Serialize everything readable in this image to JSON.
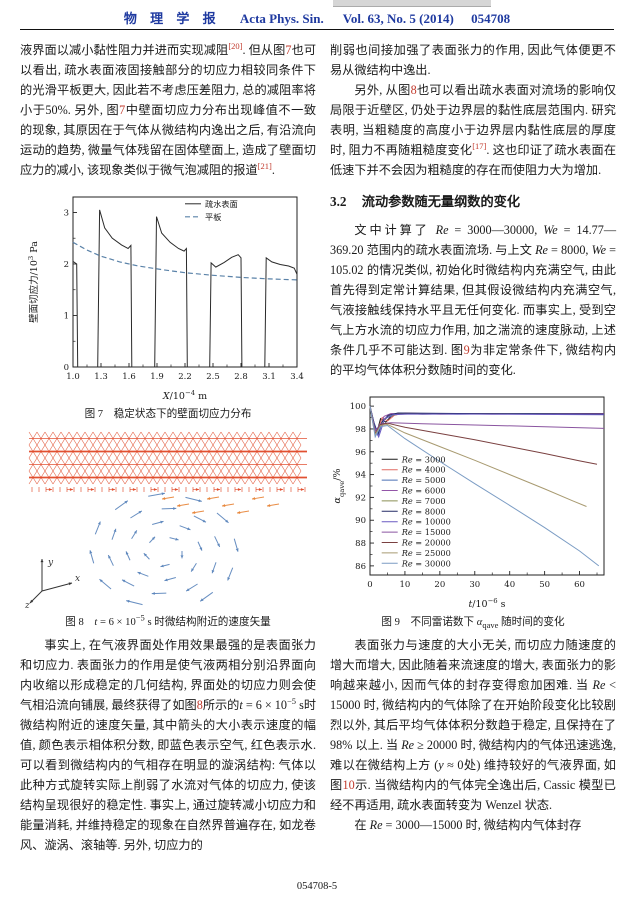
{
  "header": {
    "journal_cn": "物 理 学 报",
    "journal_en": "Acta Phys. Sin.",
    "volume": "Vol. 63, No. 5 (2014)",
    "article": "054708"
  },
  "footer": {
    "page_label": "054708-5"
  },
  "colors": {
    "header_blue": "#1f3aa0",
    "reference_red": "#c23b2e",
    "figure8_water_red": "#e04828",
    "figure8_gas_blue": "#5b85bc",
    "figure8_interface_orange": "#e8863a"
  },
  "left_column": {
    "p1": [
      {
        "t": "液界面以减小黏性阻力并进而实现减阻"
      },
      {
        "t": "[20]",
        "c": "ref"
      },
      {
        "t": ". 但从图"
      },
      {
        "t": "7",
        "c": "red"
      },
      {
        "t": "也可以看出, 疏水表面液固接触部分的切应力相较同条件下的光滑平板更大, 因此若不考虑压差阻力, 总的减阻率将小于50%. 另外, 图"
      },
      {
        "t": "7",
        "c": "red"
      },
      {
        "t": "中壁面切应力分布出现峰值不一致的现象, 其原因在于气体从微结构内逸出之后, 有沿流向运动的趋势, 微量气体残留在固体壁面上, 造成了壁面切应力的减小, 该现象类似于微气泡减阻的报道"
      },
      {
        "t": "[21]",
        "c": "ref"
      },
      {
        "t": "."
      }
    ],
    "fig7_caption": "图 7 稳定状态下的壁面切应力分布",
    "fig8_caption": [
      {
        "t": "图 8 "
      },
      {
        "t": "t",
        "c": "it"
      },
      {
        "t": " = 6 × 10"
      },
      {
        "t": "−5",
        "c": "sup"
      },
      {
        "t": " s 时微结构附近的速度矢量"
      }
    ],
    "p2": [
      {
        "t": "事实上, 在气液界面处作用效果最强的是表面张力和切应力. 表面张力的作用是使气液两相分别沿界面向内收缩以形成稳定的几何结构, 界面处的切应力则会使气相沿流向铺展, 最终获得了如图"
      },
      {
        "t": "8",
        "c": "red"
      },
      {
        "t": "所示的"
      },
      {
        "t": "t",
        "c": "it"
      },
      {
        "t": " = 6 × 10"
      },
      {
        "t": "−5",
        "c": "sup"
      },
      {
        "t": " s时微结构附近的速度矢量, 其中箭头的大小表示速度的幅值, 颜色表示相体积分数, 即蓝色表示空气, 红色表示水. 可以看到微结构内的气相存在明显的漩涡结构: 气体以此种方式旋转实际上削弱了水流对气体的切应力, 使该结构呈现很好的稳定性. 事实上, 通过旋转减小切应力和能量消耗, 并维持稳定的现象在自然界普遍存在, 如龙卷风、漩涡、滚轴等. 另外, 切应力的"
      }
    ]
  },
  "right_column": {
    "p3": [
      {
        "t": "削弱也间接加强了表面张力的作用, 因此气体便更不易从微结构中逸出."
      }
    ],
    "p4": [
      {
        "t": "另外, 从图"
      },
      {
        "t": "8",
        "c": "red"
      },
      {
        "t": "也可以看出疏水表面对流场的影响仅局限于近壁区, 仍处于边界层的黏性底层范围内. 研究表明, 当粗糙度的高度小于边界层内黏性底层的厚度时, 阻力不再随粗糙度变化"
      },
      {
        "t": "[17]",
        "c": "ref"
      },
      {
        "t": ". 这也印证了疏水表面在低速下并不会因为粗糙度的存在而使阻力大为增加."
      }
    ],
    "section": {
      "number": "3.2",
      "title": "流动参数随无量纲数的变化"
    },
    "p5": [
      {
        "t": "文中计算了 "
      },
      {
        "t": "Re",
        "c": "it"
      },
      {
        "t": " = 3000—30000, "
      },
      {
        "t": "We",
        "c": "it"
      },
      {
        "t": " = 14.77—369.20 范围内的疏水表面流场. 与上文 "
      },
      {
        "t": "Re",
        "c": "it"
      },
      {
        "t": " = 8000, "
      },
      {
        "t": "We",
        "c": "it"
      },
      {
        "t": " = 105.02 的情况类似, 初始化时微结构内充满空气, 由此首先得到定常计算结果, 但其假设微结构内充满空气, 气液接触线保持水平且无任何变化. 而事实上, 受到空气上方水流的切应力作用, 加之湍流的速度脉动, 上述条件几乎不可能达到. 图"
      },
      {
        "t": "9",
        "c": "red"
      },
      {
        "t": "为非定常条件下, 微结构内的平均气体体积分数随时间的变化."
      }
    ],
    "fig9_caption": [
      {
        "t": "图 9 不同雷诺数下 "
      },
      {
        "t": "α",
        "c": "it"
      },
      {
        "t": "qave",
        "c": "sub"
      },
      {
        "t": " 随时间的变化"
      }
    ],
    "p6": [
      {
        "t": "表面张力与速度的大小无关, 而切应力随速度的增大而增大, 因此随着来流速度的增大, 表面张力的影响越来越小, 因而气体的封存变得愈加困难. 当 "
      },
      {
        "t": "Re",
        "c": "it"
      },
      {
        "t": " < 15000 时, 微结构内的气体除了在开始阶段变化比较剧烈以外, 其后平均气体体积分数趋于稳定, 且保持在了98% 以上. 当 "
      },
      {
        "t": "Re",
        "c": "it"
      },
      {
        "t": " ≥ 20000 时, 微结构内的气体迅速逃逸, 难以在微结构上方 ("
      },
      {
        "t": "y",
        "c": "it"
      },
      {
        "t": " ≈ 0处) 维持较好的气液界面, 如图"
      },
      {
        "t": "10",
        "c": "red"
      },
      {
        "t": "示. 当微结构内的气体完全逸出后, Cassic 模型已经不再适用, 疏水表面转变为 Wenzel 状态."
      }
    ],
    "p7": [
      {
        "t": "在 "
      },
      {
        "t": "Re",
        "c": "it"
      },
      {
        "t": " = 3000—15000 时, 微结构内气体封存"
      }
    ]
  },
  "figure8": {
    "type": "vector-field",
    "water_color": "#e04828",
    "gas_color": "#5b85bc",
    "interface_color": "#e8863a",
    "axis_labels": {
      "x": "x",
      "y": "y",
      "z": "z"
    }
  },
  "chart_data": [
    {
      "type": "line",
      "title": "稳定状态下的壁面切应力分布",
      "xlabel": "X/10⁻⁴ m",
      "ylabel": "壁面切应力/10³ Pa",
      "xlabel_runs": [
        {
          "t": "X",
          "c": "it"
        },
        {
          "t": "/10"
        },
        {
          "t": "−4",
          "c": "sup"
        },
        {
          "t": " m"
        }
      ],
      "ylabel_runs": [
        {
          "t": "壁面切应力/10"
        },
        {
          "t": "3",
          "c": "sup"
        },
        {
          "t": " Pa"
        }
      ],
      "xlim": [
        1.0,
        3.4
      ],
      "ylim": [
        0,
        3.3
      ],
      "xticks": [
        1.0,
        1.3,
        1.6,
        1.9,
        2.2,
        2.5,
        2.8,
        3.1,
        3.4
      ],
      "xtick_labels": [
        "1.0",
        "1.3",
        "1.6",
        "1.9",
        "2.2",
        "2.5",
        "2.8",
        "3.1",
        "3.4"
      ],
      "xminor": [
        1.15,
        1.45,
        1.75,
        2.05,
        2.35,
        2.65,
        2.95,
        3.25
      ],
      "yticks": [
        0,
        1,
        2,
        3
      ],
      "ytick_labels": [
        "0",
        "1",
        "2",
        "3"
      ],
      "yminor": [
        0.5,
        1.5,
        2.5
      ],
      "grid": false,
      "legend": {
        "x": 0.5,
        "y": 0.04,
        "dy": 13
      },
      "series": [
        {
          "name": "疏水表面",
          "color": "#2a2a2a",
          "width": 1,
          "points": [
            [
              1.0,
              2.05
            ],
            [
              1.04,
              2.0
            ],
            [
              1.05,
              0
            ],
            [
              1.265,
              0
            ],
            [
              1.285,
              3.05
            ],
            [
              1.34,
              2.7
            ],
            [
              1.42,
              2.5
            ],
            [
              1.52,
              2.37
            ],
            [
              1.59,
              2.3
            ],
            [
              1.62,
              2.36
            ],
            [
              1.63,
              0
            ],
            [
              1.875,
              0
            ],
            [
              1.895,
              2.92
            ],
            [
              1.95,
              2.6
            ],
            [
              2.04,
              2.42
            ],
            [
              2.13,
              2.3
            ],
            [
              2.19,
              2.25
            ],
            [
              2.215,
              2.3
            ],
            [
              2.225,
              0
            ],
            [
              2.465,
              0
            ],
            [
              2.48,
              2.02
            ],
            [
              2.53,
              1.94
            ],
            [
              2.62,
              2.03
            ],
            [
              2.7,
              2.13
            ],
            [
              2.77,
              2.18
            ],
            [
              2.8,
              2.12
            ],
            [
              2.81,
              0
            ],
            [
              3.055,
              0
            ],
            [
              3.07,
              2.12
            ],
            [
              3.13,
              2.04
            ],
            [
              3.22,
              1.99
            ],
            [
              3.31,
              1.96
            ],
            [
              3.37,
              1.92
            ],
            [
              3.4,
              1.8
            ]
          ]
        },
        {
          "name": "平板",
          "color": "#5a82a8",
          "width": 1.2,
          "dash": "5 3",
          "points": [
            [
              1.0,
              2.42
            ],
            [
              1.15,
              2.27
            ],
            [
              1.3,
              2.15
            ],
            [
              1.5,
              2.04
            ],
            [
              1.7,
              1.96
            ],
            [
              1.95,
              1.89
            ],
            [
              2.2,
              1.83
            ],
            [
              2.5,
              1.78
            ],
            [
              2.8,
              1.74
            ],
            [
              3.1,
              1.71
            ],
            [
              3.4,
              1.69
            ]
          ]
        }
      ]
    },
    {
      "type": "line",
      "title": "不同雷诺数下 αqave 随时间的变化",
      "xlabel": "t/10⁻⁶ s",
      "ylabel": "αqave/%",
      "xlabel_runs": [
        {
          "t": "t",
          "c": "it"
        },
        {
          "t": "/10"
        },
        {
          "t": "−6",
          "c": "sup"
        },
        {
          "t": " s"
        }
      ],
      "ylabel_runs": [
        {
          "t": "α",
          "c": "it"
        },
        {
          "t": "qave",
          "c": "sub"
        },
        {
          "t": "/%"
        }
      ],
      "xlim": [
        0,
        67
      ],
      "ylim": [
        85.2,
        100.8
      ],
      "xticks": [
        0,
        10,
        20,
        30,
        40,
        50,
        60
      ],
      "xtick_labels": [
        "0",
        "10",
        "20",
        "30",
        "40",
        "50",
        "60"
      ],
      "xminor": [
        5,
        15,
        25,
        35,
        45,
        55,
        65
      ],
      "yticks": [
        86,
        88,
        90,
        92,
        94,
        96,
        98,
        100
      ],
      "ytick_labels": [
        "86",
        "88",
        "90",
        "92",
        "94",
        "96",
        "98",
        "100"
      ],
      "yminor": [
        87,
        89,
        91,
        93,
        95,
        97,
        99
      ],
      "grid": false,
      "legend": {
        "x": 0.05,
        "y": 0.35,
        "dy": 10.4,
        "prefix_runs": [
          {
            "t": "Re",
            "c": "it"
          },
          {
            "t": " = "
          }
        ]
      },
      "series": [
        {
          "name": "3000",
          "color": "#1a1a1a",
          "width": 1,
          "points": [
            [
              0,
              100
            ],
            [
              1,
              98.4
            ],
            [
              2,
              97.7
            ],
            [
              3,
              98.9
            ],
            [
              4.5,
              98.6
            ],
            [
              6,
              99.1
            ],
            [
              8,
              99.35
            ],
            [
              15,
              99.3
            ],
            [
              30,
              99.35
            ],
            [
              50,
              99.3
            ],
            [
              67,
              99.35
            ]
          ]
        },
        {
          "name": "4000",
          "color": "#e06a62",
          "width": 1,
          "points": [
            [
              0,
              100
            ],
            [
              1,
              98.2
            ],
            [
              2.2,
              97.9
            ],
            [
              3.5,
              99.0
            ],
            [
              5,
              98.7
            ],
            [
              7,
              99.2
            ],
            [
              10,
              99.4
            ],
            [
              20,
              99.3
            ],
            [
              40,
              99.35
            ],
            [
              67,
              99.3
            ]
          ]
        },
        {
          "name": "5000",
          "color": "#4a6fb5",
          "width": 1,
          "points": [
            [
              0,
              100
            ],
            [
              1.2,
              98.5
            ],
            [
              2.4,
              97.5
            ],
            [
              3.6,
              98.7
            ],
            [
              5,
              99.0
            ],
            [
              7.5,
              99.3
            ],
            [
              12,
              99.35
            ],
            [
              25,
              99.3
            ],
            [
              45,
              99.35
            ],
            [
              67,
              99.3
            ]
          ]
        },
        {
          "name": "6000",
          "color": "#9355a8",
          "width": 1,
          "points": [
            [
              0,
              100
            ],
            [
              1.4,
              98.1
            ],
            [
              2.6,
              97.9
            ],
            [
              4,
              99.1
            ],
            [
              6,
              99.35
            ],
            [
              9,
              99.3
            ],
            [
              18,
              99.35
            ],
            [
              35,
              99.3
            ],
            [
              67,
              99.35
            ]
          ]
        },
        {
          "name": "7000",
          "color": "#8a8f55",
          "width": 1,
          "points": [
            [
              0,
              100
            ],
            [
              1,
              98.3
            ],
            [
              2.3,
              97.7
            ],
            [
              3.8,
              98.8
            ],
            [
              5.5,
              99.15
            ],
            [
              8.5,
              99.3
            ],
            [
              20,
              99.35
            ],
            [
              67,
              99.3
            ]
          ]
        },
        {
          "name": "8000",
          "color": "#232a66",
          "width": 1,
          "points": [
            [
              0,
              100
            ],
            [
              1.1,
              98.6
            ],
            [
              2.2,
              97.5
            ],
            [
              3.4,
              98.6
            ],
            [
              5.2,
              99.2
            ],
            [
              8,
              99.4
            ],
            [
              25,
              99.35
            ],
            [
              67,
              99.3
            ]
          ]
        },
        {
          "name": "10000",
          "color": "#6a5ac2",
          "width": 1,
          "points": [
            [
              0,
              100
            ],
            [
              1.3,
              98.2
            ],
            [
              2.5,
              97.3
            ],
            [
              4.2,
              98.9
            ],
            [
              6.5,
              99.25
            ],
            [
              10,
              99.3
            ],
            [
              30,
              99.3
            ],
            [
              67,
              99.25
            ]
          ]
        },
        {
          "name": "15000",
          "color": "#8a55a0",
          "width": 1,
          "points": [
            [
              0,
              100
            ],
            [
              1.5,
              97.8
            ],
            [
              3,
              98.45
            ],
            [
              6,
              98.55
            ],
            [
              15,
              98.45
            ],
            [
              30,
              98.35
            ],
            [
              50,
              98.2
            ],
            [
              67,
              98.05
            ]
          ]
        },
        {
          "name": "20000",
          "color": "#7a4040",
          "width": 1,
          "points": [
            [
              0,
              100
            ],
            [
              1.5,
              97.6
            ],
            [
              3,
              98.4
            ],
            [
              5,
              98.5
            ],
            [
              10,
              98.15
            ],
            [
              20,
              97.6
            ],
            [
              30,
              97.05
            ],
            [
              40,
              96.45
            ],
            [
              50,
              95.85
            ],
            [
              60,
              95.2
            ],
            [
              65,
              94.9
            ]
          ]
        },
        {
          "name": "25000",
          "color": "#a89a70",
          "width": 1,
          "points": [
            [
              0,
              100
            ],
            [
              1.5,
              97.5
            ],
            [
              3,
              98.3
            ],
            [
              5,
              98.4
            ],
            [
              10,
              97.65
            ],
            [
              20,
              96.45
            ],
            [
              30,
              95.25
            ],
            [
              40,
              94.0
            ],
            [
              50,
              92.75
            ],
            [
              58,
              91.7
            ],
            [
              62,
              91.2
            ]
          ]
        },
        {
          "name": "30000",
          "color": "#7b9cc4",
          "width": 1,
          "points": [
            [
              0,
              100
            ],
            [
              1.5,
              97.3
            ],
            [
              3,
              98.2
            ],
            [
              5,
              98.3
            ],
            [
              10,
              97.15
            ],
            [
              20,
              95.15
            ],
            [
              30,
              93.2
            ],
            [
              40,
              91.3
            ],
            [
              50,
              89.35
            ],
            [
              60,
              87.3
            ],
            [
              65.5,
              86.0
            ]
          ]
        }
      ]
    }
  ]
}
